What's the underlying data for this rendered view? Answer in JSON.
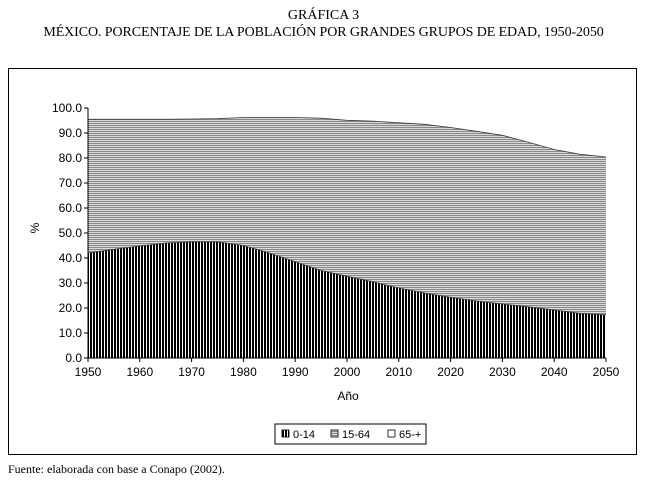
{
  "header": {
    "title": "GRÁFICA 3",
    "subtitle": "MÉXICO. PORCENTAJE DE LA POBLACIÓN POR GRANDES GRUPOS DE EDAD, 1950-2050"
  },
  "footer": {
    "source": "Fuente: elaborada con base a Conapo (2002)."
  },
  "chart_data": {
    "type": "area",
    "stacked": true,
    "xlabel": "Año",
    "ylabel": "%",
    "xlim": [
      1950,
      2050
    ],
    "ylim": [
      0,
      100
    ],
    "x_ticks": [
      "1950",
      "1960",
      "1970",
      "1980",
      "1990",
      "2000",
      "2010",
      "2020",
      "2030",
      "2040",
      "2050"
    ],
    "y_ticks": [
      "0.0",
      "10.0",
      "20.0",
      "30.0",
      "40.0",
      "50.0",
      "60.0",
      "70.0",
      "80.0",
      "90.0",
      "100.0"
    ],
    "x": [
      1950,
      1955,
      1960,
      1965,
      1970,
      1975,
      1980,
      1985,
      1990,
      1995,
      2000,
      2005,
      2010,
      2015,
      2020,
      2025,
      2030,
      2035,
      2040,
      2045,
      2050
    ],
    "series": [
      {
        "name": "0-14",
        "values": [
          42.0,
          43.5,
          44.8,
          46.0,
          46.5,
          46.5,
          45.0,
          42.0,
          38.5,
          35.0,
          32.7,
          30.5,
          28.0,
          26.0,
          24.3,
          22.8,
          21.6,
          20.5,
          19.2,
          17.9,
          17.3
        ]
      },
      {
        "name": "15-64",
        "values": [
          53.5,
          52.0,
          50.7,
          49.5,
          49.1,
          49.2,
          51.2,
          54.2,
          57.7,
          60.9,
          62.4,
          64.2,
          66.1,
          67.5,
          67.9,
          67.9,
          67.5,
          65.8,
          64.2,
          63.6,
          63.1
        ]
      },
      {
        "name": "65-+",
        "values": [
          4.5,
          4.5,
          4.5,
          4.5,
          4.4,
          4.3,
          3.8,
          3.8,
          3.8,
          4.1,
          4.9,
          5.3,
          5.9,
          6.5,
          7.8,
          9.3,
          10.9,
          13.7,
          16.6,
          18.5,
          19.6
        ]
      }
    ],
    "grid": false,
    "legend_position": "bottom-center",
    "colors": {
      "plot_bg": "#c0c0c0",
      "series_0_fill": "#000000",
      "series_1_fill": "#a6a6a6",
      "series_2_fill": "#ffffff"
    }
  }
}
